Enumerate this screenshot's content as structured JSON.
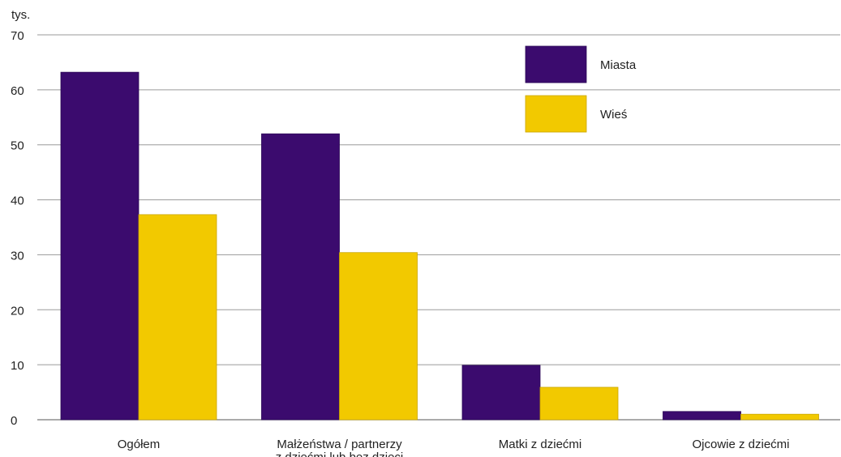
{
  "chart_data": {
    "type": "bar",
    "title": "",
    "xlabel": "",
    "ylabel": "tys.",
    "ylim": [
      0,
      70
    ],
    "yticks": [
      0,
      10,
      20,
      30,
      40,
      50,
      60,
      70
    ],
    "grid": true,
    "legend_position": "top-right",
    "categories": [
      [
        "Ogółem"
      ],
      [
        "Małżeństwa / partnerzy",
        "z dziećmi lub bez dzieci"
      ],
      [
        "Matki z dziećmi"
      ],
      [
        "Ojcowie z dziećmi"
      ]
    ],
    "series": [
      {
        "name": "Miasta",
        "color": "#3b0b6e",
        "values": [
          63.2,
          52.0,
          9.9,
          1.5
        ]
      },
      {
        "name": "Wieś",
        "color": "#f2c900",
        "values": [
          37.3,
          30.4,
          5.9,
          1.0
        ]
      }
    ]
  }
}
